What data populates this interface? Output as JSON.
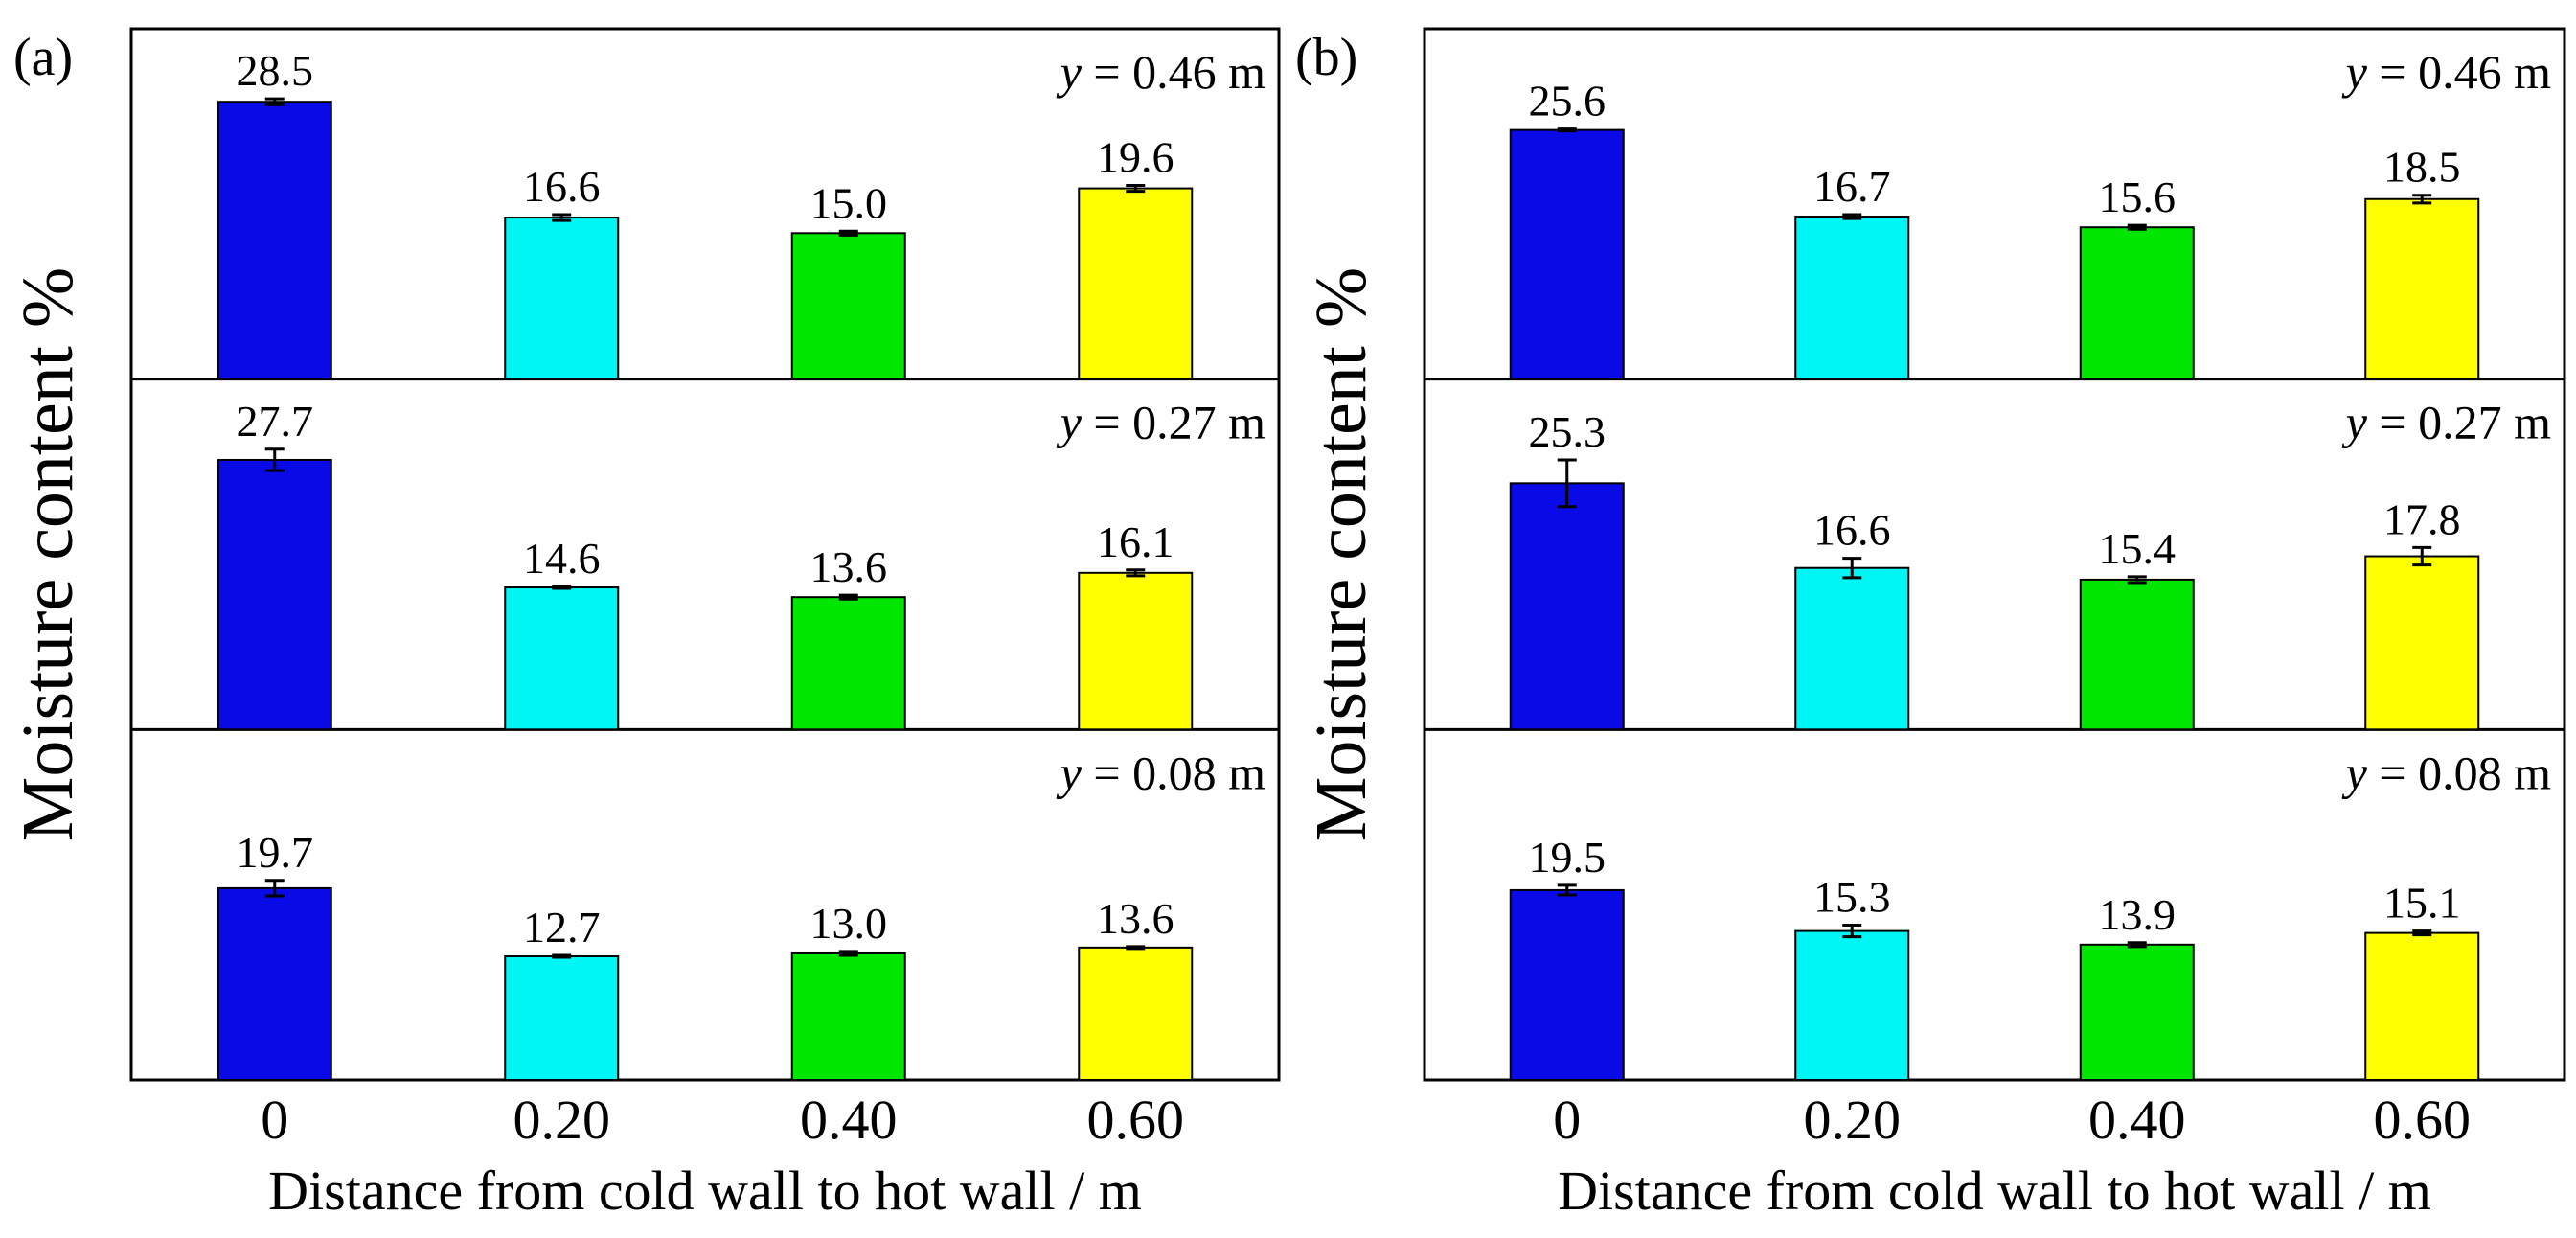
{
  "chart_data": [
    {
      "type": "bar",
      "panel_label": "(a)",
      "ylabel": "Moisture content %",
      "xlabel": "Distance from cold wall to hot wall / m",
      "categories": [
        "0",
        "0.20",
        "0.40",
        "0.60"
      ],
      "bar_colors": [
        "#0a0ae6",
        "#00f5f5",
        "#00e600",
        "#ffff00"
      ],
      "ylim": [
        0,
        36
      ],
      "subplots": [
        {
          "annotation_var": "y",
          "annotation_rest": " = 0.46 m",
          "values": [
            28.5,
            16.6,
            15.0,
            19.6
          ],
          "labels": [
            "28.5",
            "16.6",
            "15.0",
            "19.6"
          ],
          "errors": [
            0.3,
            0.3,
            0.2,
            0.3
          ]
        },
        {
          "annotation_var": "y",
          "annotation_rest": " = 0.27 m",
          "values": [
            27.7,
            14.6,
            13.6,
            16.1
          ],
          "labels": [
            "27.7",
            "14.6",
            "13.6",
            "16.1"
          ],
          "errors": [
            1.1,
            0.1,
            0.2,
            0.3
          ]
        },
        {
          "annotation_var": "y",
          "annotation_rest": " = 0.08 m",
          "values": [
            19.7,
            12.7,
            13.0,
            13.6
          ],
          "labels": [
            "19.7",
            "12.7",
            "13.0",
            "13.6"
          ],
          "errors": [
            0.8,
            0.1,
            0.2,
            0.1
          ]
        }
      ]
    },
    {
      "type": "bar",
      "panel_label": "(b)",
      "ylabel": "Moisture content %",
      "xlabel": "Distance from cold wall to hot wall / m",
      "categories": [
        "0",
        "0.20",
        "0.40",
        "0.60"
      ],
      "bar_colors": [
        "#0a0ae6",
        "#00f5f5",
        "#00e600",
        "#ffff00"
      ],
      "ylim": [
        0,
        36
      ],
      "subplots": [
        {
          "annotation_var": "y",
          "annotation_rest": " = 0.46 m",
          "values": [
            25.6,
            16.7,
            15.6,
            18.5
          ],
          "labels": [
            "25.6",
            "16.7",
            "15.6",
            "18.5"
          ],
          "errors": [
            0.1,
            0.2,
            0.2,
            0.4
          ]
        },
        {
          "annotation_var": "y",
          "annotation_rest": " = 0.27 m",
          "values": [
            25.3,
            16.6,
            15.4,
            17.8
          ],
          "labels": [
            "25.3",
            "16.6",
            "15.4",
            "17.8"
          ],
          "errors": [
            2.4,
            1.0,
            0.3,
            0.9
          ]
        },
        {
          "annotation_var": "y",
          "annotation_rest": " = 0.08 m",
          "values": [
            19.5,
            15.3,
            13.9,
            15.1
          ],
          "labels": [
            "19.5",
            "15.3",
            "13.9",
            "15.1"
          ],
          "errors": [
            0.5,
            0.6,
            0.2,
            0.2
          ]
        }
      ]
    }
  ]
}
